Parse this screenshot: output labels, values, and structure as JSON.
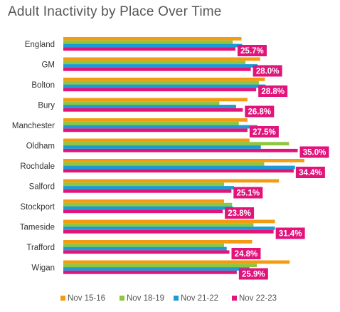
{
  "chart_data": {
    "type": "bar",
    "orientation": "horizontal",
    "title": "Adult Inactivity by Place Over Time",
    "categories": [
      "England",
      "GM",
      "Bolton",
      "Bury",
      "Manchester",
      "Oldham",
      "Rochdale",
      "Salford",
      "Stockport",
      "Tameside",
      "Trafford",
      "Wigan"
    ],
    "series": [
      {
        "name": "Nov 15-16",
        "color": "#F39C12",
        "values": [
          26.6,
          29.4,
          30.1,
          27.5,
          27.5,
          27.8,
          36.0,
          32.2,
          24.0,
          31.6,
          28.2,
          33.8
        ]
      },
      {
        "name": "Nov 18-19",
        "color": "#8DC63F",
        "values": [
          25.3,
          27.2,
          29.2,
          23.3,
          26.2,
          33.7,
          30.0,
          24.0,
          25.2,
          28.4,
          24.0,
          28.9
        ]
      },
      {
        "name": "Nov 21-22",
        "color": "#1B9AD6",
        "values": [
          26.7,
          29.0,
          30.2,
          25.8,
          29.0,
          29.5,
          34.6,
          25.5,
          25.3,
          31.6,
          24.4,
          27.8
        ]
      },
      {
        "name": "Nov 22-23",
        "color": "#E0147B",
        "values": [
          25.7,
          28.0,
          28.8,
          26.8,
          27.5,
          35.0,
          34.4,
          25.1,
          23.8,
          31.4,
          24.8,
          25.9
        ]
      }
    ],
    "data_labels": [
      "25.7%",
      "28.0%",
      "28.8%",
      "26.8%",
      "27.5%",
      "35.0%",
      "34.4%",
      "25.1%",
      "23.8%",
      "31.4%",
      "24.8%",
      "25.9%"
    ],
    "label_color": "#E0147B",
    "legend": {
      "position": "bottom"
    },
    "grid": false
  }
}
